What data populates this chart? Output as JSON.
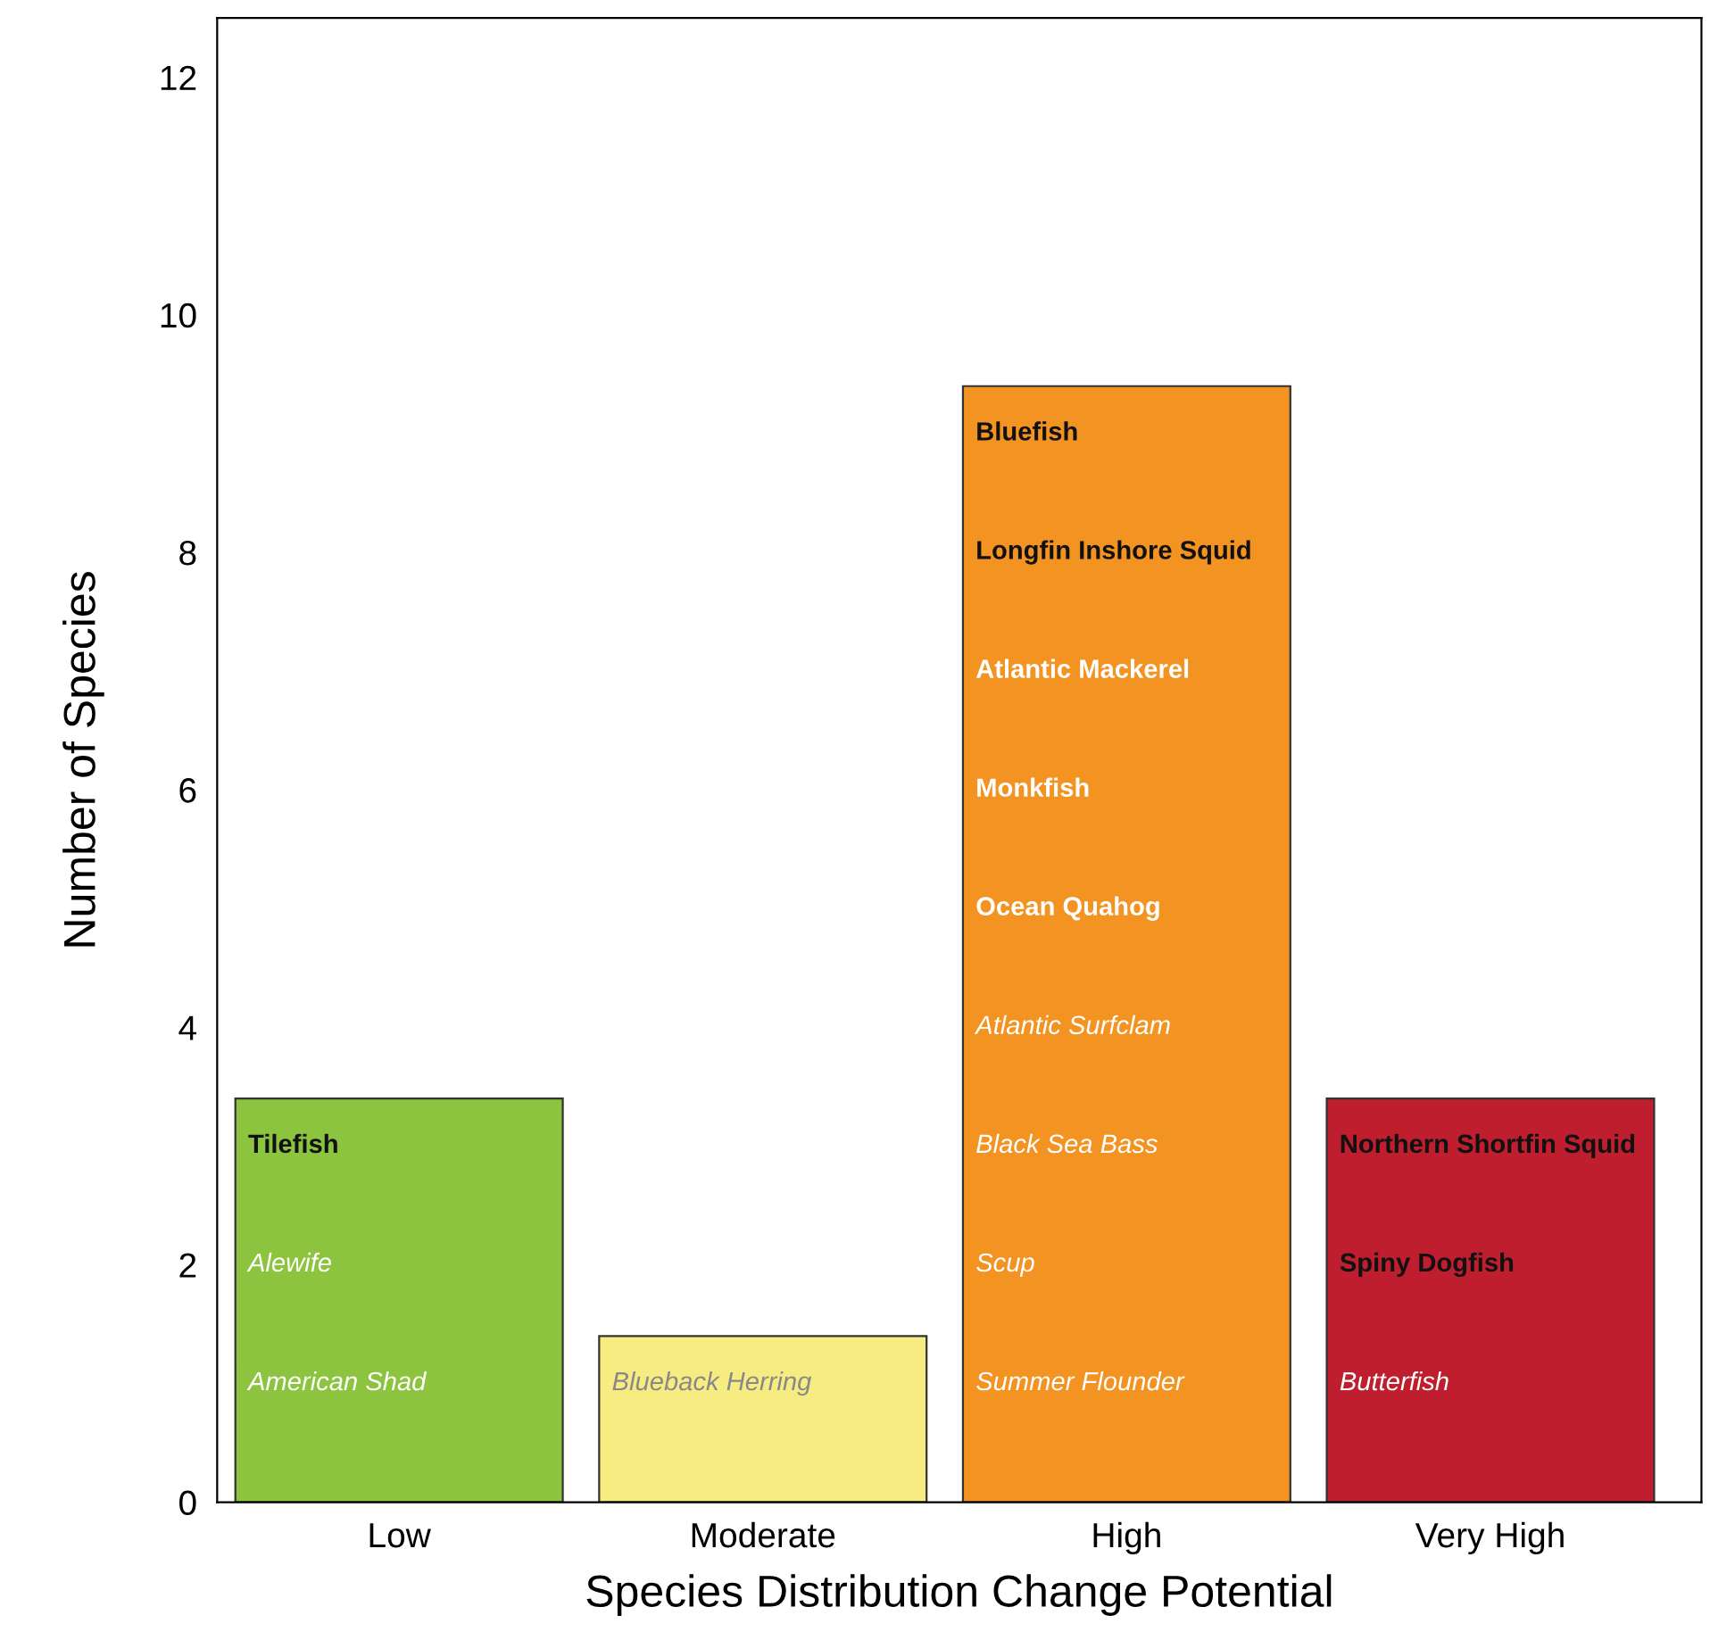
{
  "chart_data": {
    "type": "bar",
    "xlabel": "Species Distribution Change Potential",
    "ylabel": "Number of Species",
    "categories": [
      "Low",
      "Moderate",
      "High",
      "Very High"
    ],
    "values": [
      3.4,
      1.4,
      9.4,
      3.4
    ],
    "colors": [
      "#8cc43f",
      "#f7ec82",
      "#f39322",
      "#be1e2d"
    ],
    "ylim": [
      0,
      12.5
    ],
    "yticks": [
      0,
      2,
      4,
      6,
      8,
      10,
      12
    ],
    "grid": false,
    "legend": false,
    "annotations": [
      "Tilefish",
      "Alewife",
      "American Shad",
      "Blueback Herring",
      "Bluefish",
      "Longfin Inshore Squid",
      "Atlantic Mackerel",
      "Monkfish",
      "Ocean Quahog",
      "Atlantic Surfclam",
      "Black Sea Bass",
      "Scup",
      "Summer Flounder",
      "Northern Shortfin Squid",
      "Spiny Dogfish",
      "Butterfish"
    ]
  }
}
